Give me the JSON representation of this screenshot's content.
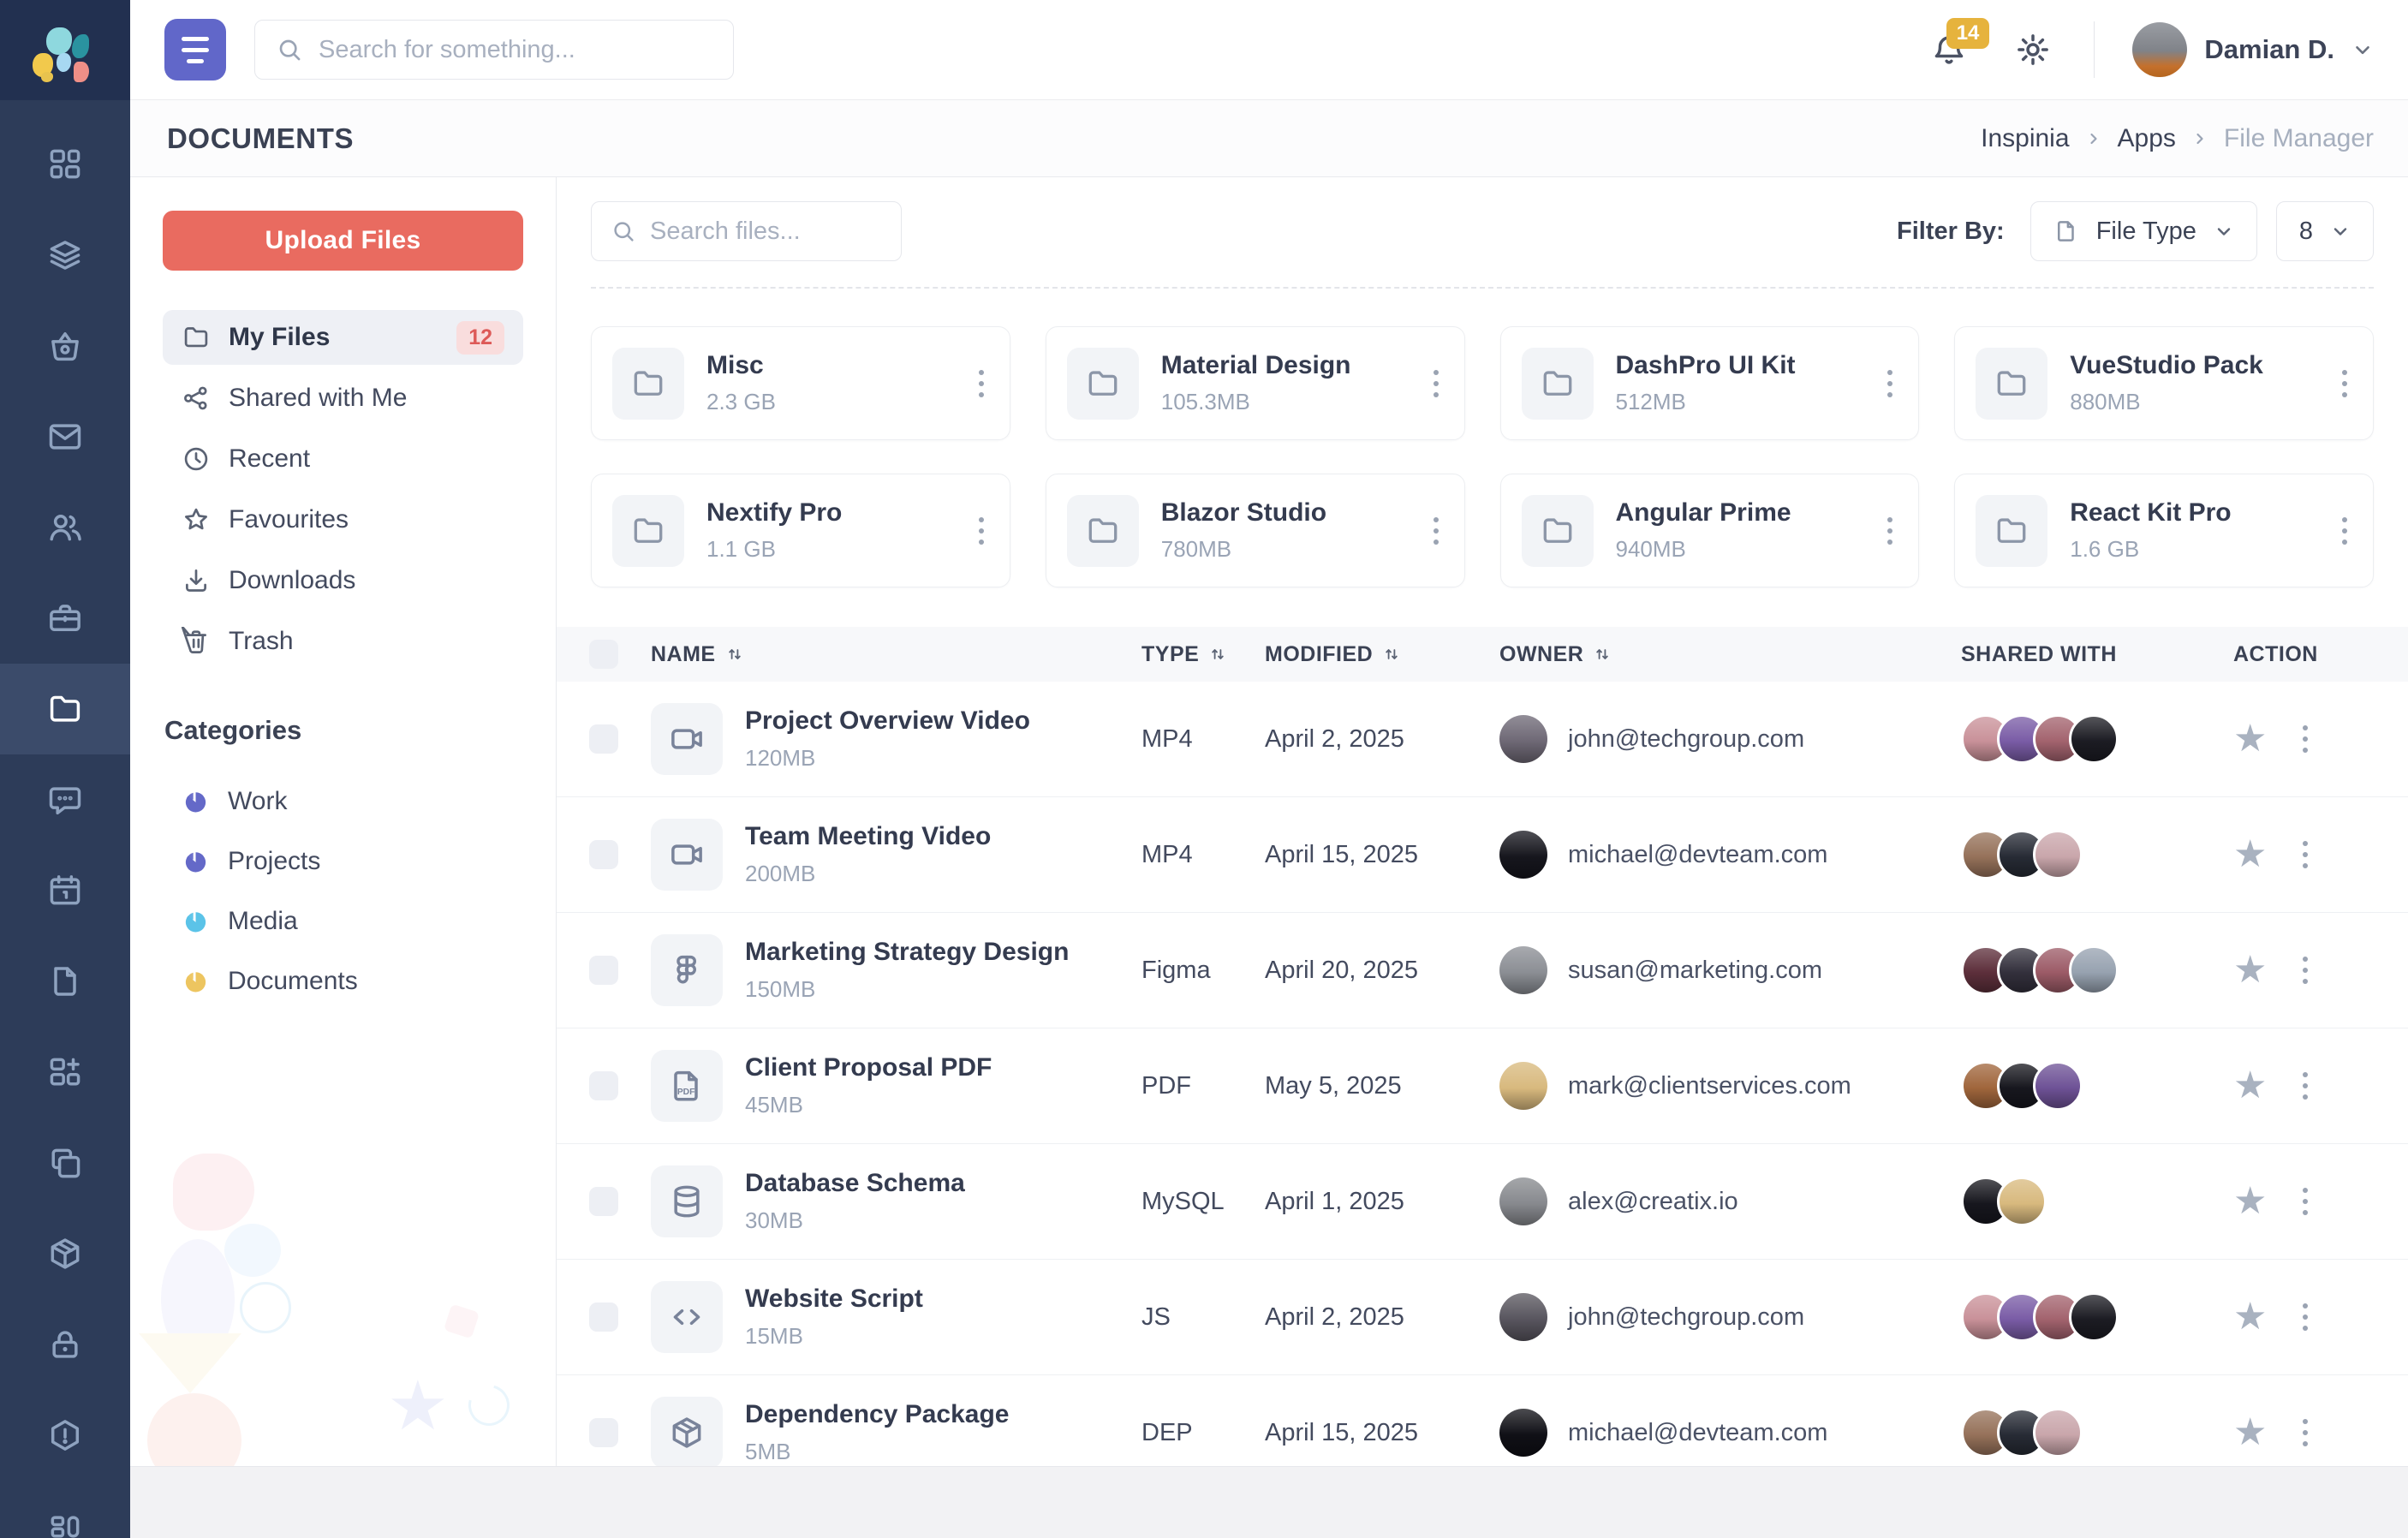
{
  "topbar": {
    "search_placeholder": "Search for something...",
    "notifications_count": "14",
    "user_name": "Damian D."
  },
  "page": {
    "title": "DOCUMENTS",
    "breadcrumb": [
      "Inspinia",
      "Apps",
      "File Manager"
    ]
  },
  "sidebar_icons": [
    {
      "name": "dashboard-icon",
      "icon": "grid",
      "active": false
    },
    {
      "name": "layers-icon",
      "icon": "layers",
      "active": false
    },
    {
      "name": "basket-icon",
      "icon": "basket",
      "active": false
    },
    {
      "name": "mail-icon",
      "icon": "mail",
      "active": false
    },
    {
      "name": "users-icon",
      "icon": "users",
      "active": false
    },
    {
      "name": "briefcase-icon",
      "icon": "briefcase",
      "active": false
    },
    {
      "name": "file-manager-icon",
      "icon": "folder",
      "active": true
    },
    {
      "name": "chat-icon",
      "icon": "chat",
      "active": false
    },
    {
      "name": "calendar-icon",
      "icon": "calendar",
      "active": false
    },
    {
      "name": "page-icon",
      "icon": "page",
      "active": false
    },
    {
      "name": "widgets-icon",
      "icon": "widget-plus",
      "active": false
    },
    {
      "name": "copy-icon",
      "icon": "copy",
      "active": false
    },
    {
      "name": "package-icon",
      "icon": "package",
      "active": false
    },
    {
      "name": "lock-icon",
      "icon": "lock",
      "active": false
    },
    {
      "name": "alert-icon",
      "icon": "alert",
      "active": false
    },
    {
      "name": "layout-icon",
      "icon": "columns",
      "active": false
    }
  ],
  "left_panel": {
    "upload_label": "Upload Files",
    "menu": [
      {
        "label": "My Files",
        "icon": "folder",
        "badge": "12",
        "active": true
      },
      {
        "label": "Shared with Me",
        "icon": "share",
        "badge": null,
        "active": false
      },
      {
        "label": "Recent",
        "icon": "clock",
        "badge": null,
        "active": false
      },
      {
        "label": "Favourites",
        "icon": "star",
        "badge": null,
        "active": false
      },
      {
        "label": "Downloads",
        "icon": "download",
        "badge": null,
        "active": false
      },
      {
        "label": "Trash",
        "icon": "trash",
        "badge": null,
        "active": false
      }
    ],
    "categories_title": "Categories",
    "categories": [
      {
        "label": "Work",
        "color": "#6469c8"
      },
      {
        "label": "Projects",
        "color": "#6469c8"
      },
      {
        "label": "Media",
        "color": "#5bc3e8"
      },
      {
        "label": "Documents",
        "color": "#edc560"
      }
    ]
  },
  "toolbar": {
    "search_placeholder": "Search files...",
    "filter_label": "Filter By:",
    "file_type_label": "File Type",
    "page_size": "8"
  },
  "folders": [
    {
      "name": "Misc",
      "size": "2.3 GB"
    },
    {
      "name": "Material Design",
      "size": "105.3MB"
    },
    {
      "name": "DashPro UI Kit",
      "size": "512MB"
    },
    {
      "name": "VueStudio Pack",
      "size": "880MB"
    },
    {
      "name": "Nextify Pro",
      "size": "1.1 GB"
    },
    {
      "name": "Blazor Studio",
      "size": "780MB"
    },
    {
      "name": "Angular Prime",
      "size": "940MB"
    },
    {
      "name": "React Kit Pro",
      "size": "1.6 GB"
    }
  ],
  "table": {
    "headers": [
      {
        "label": "Name",
        "sortable": true
      },
      {
        "label": "Type",
        "sortable": true
      },
      {
        "label": "Modified",
        "sortable": true
      },
      {
        "label": "Owner",
        "sortable": true
      },
      {
        "label": "Shared With",
        "sortable": false
      },
      {
        "label": "Action",
        "sortable": false
      }
    ],
    "rows": [
      {
        "name": "Project Overview Video",
        "size": "120MB",
        "icon": "video",
        "type": "MP4",
        "modified": "April 2, 2025",
        "owner_email": "john@techgroup.com",
        "owner_color": "#6e6875",
        "shared_colors": [
          "#c99199",
          "#7a5ca6",
          "#a3636e",
          "#1c1c23"
        ]
      },
      {
        "name": "Team Meeting Video",
        "size": "200MB",
        "icon": "video",
        "type": "MP4",
        "modified": "April 15, 2025",
        "owner_email": "michael@devteam.com",
        "owner_color": "#16161d",
        "shared_colors": [
          "#96725a",
          "#272b35",
          "#c9a6ab"
        ]
      },
      {
        "name": "Marketing Strategy Design",
        "size": "150MB",
        "icon": "figma",
        "type": "Figma",
        "modified": "April 20, 2025",
        "owner_email": "susan@marketing.com",
        "owner_color": "#8b8e94",
        "shared_colors": [
          "#5d2f3b",
          "#33303c",
          "#9c5b67",
          "#97a2b0"
        ]
      },
      {
        "name": "Client Proposal PDF",
        "size": "45MB",
        "icon": "pdf",
        "type": "PDF",
        "modified": "May 5, 2025",
        "owner_email": "mark@clientservices.com",
        "owner_color": "#d8b97e",
        "shared_colors": [
          "#a0663c",
          "#17171e",
          "#6e5296"
        ]
      },
      {
        "name": "Database Schema",
        "size": "30MB",
        "icon": "database",
        "type": "MySQL",
        "modified": "April 1, 2025",
        "owner_email": "alex@creatix.io",
        "owner_color": "#87898e",
        "shared_colors": [
          "#17171e",
          "#d8b97e"
        ]
      },
      {
        "name": "Website Script",
        "size": "15MB",
        "icon": "code",
        "type": "JS",
        "modified": "April 2, 2025",
        "owner_email": "john@techgroup.com",
        "owner_color": "#58555e",
        "shared_colors": [
          "#c99199",
          "#7a5ca6",
          "#a3636e",
          "#1c1c23"
        ]
      },
      {
        "name": "Dependency Package",
        "size": "5MB",
        "icon": "box",
        "type": "DEP",
        "modified": "April 15, 2025",
        "owner_email": "michael@devteam.com",
        "owner_color": "#101016",
        "shared_colors": [
          "#96725a",
          "#272b35",
          "#c9a6ab"
        ]
      }
    ]
  },
  "colors": {
    "sidebar_bg": "#2d3c59",
    "logo_bg": "#223050",
    "sidebar_active_bg": "#3b4b6a",
    "accent_indigo": "#6167c9",
    "upload_coral": "#e96b60",
    "badge_pink_bg": "#f9dddd",
    "badge_pink_text": "#dd5a58",
    "notification_amber": "#e6b33d"
  }
}
